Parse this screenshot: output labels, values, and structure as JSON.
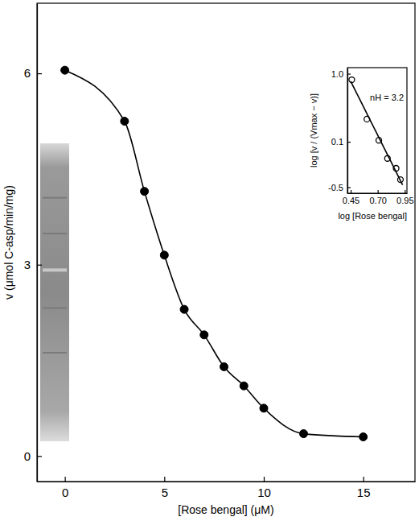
{
  "chart_data": [
    {
      "type": "line",
      "x_label": "[Rose bengal] (μM)",
      "y_label": "v (μmol C-asp/min/mg)",
      "x": [
        0,
        3,
        4,
        5,
        6,
        7,
        8,
        9,
        10,
        12,
        15
      ],
      "series": [
        {
          "values": [
            6.05,
            5.25,
            4.15,
            3.15,
            2.3,
            1.9,
            1.4,
            1.1,
            0.75,
            0.35,
            0.3
          ],
          "color": "#000000",
          "marker": "circle",
          "line_style": "solid"
        }
      ],
      "xlim": [
        -1.4,
        17.6
      ],
      "ylim": [
        -0.4,
        7.1
      ],
      "xticks": [
        0,
        5,
        10,
        15
      ],
      "yticks": [
        0,
        3,
        6
      ]
    },
    {
      "type": "scatter",
      "x_label": "log [Rose bengal]",
      "y_label": "log [v / (Vmax − v)]",
      "annotations": [
        "nH = 3.2"
      ],
      "series": [
        {
          "type": "scatter",
          "x": [
            0.46,
            0.6,
            0.71,
            0.79,
            0.87,
            0.91
          ],
          "values": [
            0.92,
            0.4,
            0.12,
            -0.12,
            -0.25,
            -0.4
          ],
          "color": "#000000",
          "marker": "circle_open"
        },
        {
          "type": "line",
          "x": [
            0.45,
            0.93
          ],
          "values": [
            0.9,
            -0.47
          ],
          "color": "#000000",
          "line_style": "solid"
        }
      ],
      "xlim": [
        0.42,
        0.97
      ],
      "ylim": [
        -0.58,
        1.08
      ],
      "xticks": [
        0.45,
        {
          "value": 0.7,
          "label": "0.70"
        },
        0.95
      ],
      "yticks": [
        {
          "value": 1,
          "label": "1.0"
        },
        0.1,
        -0.5
      ]
    }
  ]
}
